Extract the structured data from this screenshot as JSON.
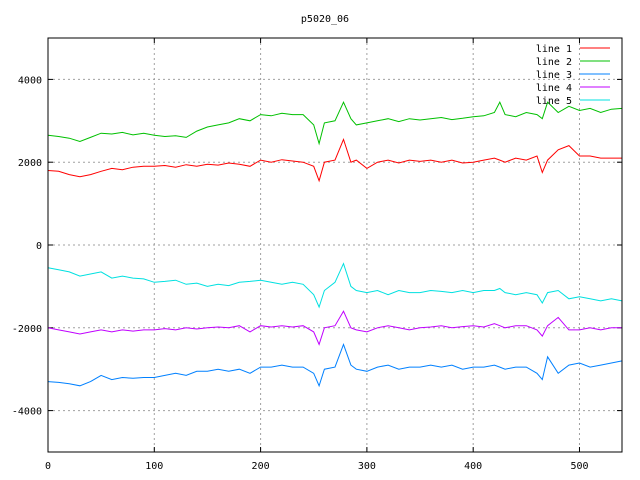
{
  "chart_data": {
    "type": "line",
    "title": "p5020_06",
    "xlabel": "",
    "ylabel": "",
    "xlim": [
      0,
      540
    ],
    "ylim": [
      -5000,
      5000
    ],
    "xticks": [
      0,
      100,
      200,
      300,
      400,
      500
    ],
    "yticks": [
      -4000,
      -2000,
      0,
      2000,
      4000
    ],
    "grid": true,
    "legend_position": "top-right",
    "x": [
      0,
      10,
      20,
      30,
      40,
      50,
      60,
      70,
      80,
      90,
      100,
      110,
      120,
      130,
      140,
      150,
      160,
      170,
      180,
      190,
      200,
      210,
      220,
      230,
      240,
      250,
      255,
      260,
      270,
      278,
      285,
      290,
      300,
      310,
      320,
      330,
      340,
      350,
      360,
      370,
      380,
      390,
      400,
      410,
      420,
      425,
      430,
      440,
      450,
      460,
      465,
      470,
      480,
      490,
      500,
      510,
      520,
      530,
      540
    ],
    "series": [
      {
        "name": "line 1",
        "color": "#ff0000",
        "values": [
          1800,
          1780,
          1700,
          1650,
          1700,
          1780,
          1850,
          1820,
          1880,
          1900,
          1900,
          1920,
          1880,
          1940,
          1900,
          1950,
          1930,
          1980,
          1950,
          1900,
          2050,
          2000,
          2060,
          2030,
          2000,
          1900,
          1550,
          2000,
          2050,
          2550,
          2000,
          2050,
          1850,
          2000,
          2050,
          1980,
          2050,
          2020,
          2050,
          2000,
          2050,
          1980,
          2000,
          2050,
          2100,
          2050,
          2000,
          2100,
          2050,
          2150,
          1750,
          2050,
          2300,
          2400,
          2150,
          2150,
          2100,
          2100,
          2100
        ]
      },
      {
        "name": "line 2",
        "color": "#00c000",
        "values": [
          2650,
          2620,
          2580,
          2500,
          2600,
          2700,
          2680,
          2720,
          2660,
          2700,
          2650,
          2620,
          2640,
          2600,
          2750,
          2850,
          2900,
          2950,
          3050,
          3000,
          3150,
          3120,
          3180,
          3150,
          3150,
          2900,
          2450,
          2950,
          3000,
          3450,
          3050,
          2900,
          2950,
          3000,
          3050,
          2980,
          3050,
          3020,
          3050,
          3080,
          3030,
          3060,
          3100,
          3120,
          3200,
          3450,
          3150,
          3100,
          3200,
          3150,
          3050,
          3450,
          3200,
          3350,
          3250,
          3300,
          3200,
          3280,
          3300
        ]
      },
      {
        "name": "line 3",
        "color": "#0080ff",
        "values": [
          -3300,
          -3320,
          -3350,
          -3400,
          -3300,
          -3150,
          -3250,
          -3200,
          -3220,
          -3200,
          -3200,
          -3150,
          -3100,
          -3150,
          -3050,
          -3050,
          -3000,
          -3050,
          -3000,
          -3100,
          -2950,
          -2950,
          -2900,
          -2950,
          -2950,
          -3100,
          -3400,
          -3000,
          -2950,
          -2400,
          -2900,
          -3000,
          -3050,
          -2950,
          -2900,
          -3000,
          -2950,
          -2950,
          -2900,
          -2950,
          -2900,
          -3000,
          -2950,
          -2950,
          -2900,
          -2950,
          -3000,
          -2950,
          -2950,
          -3100,
          -3250,
          -2700,
          -3100,
          -2900,
          -2850,
          -2950,
          -2900,
          -2850,
          -2800
        ]
      },
      {
        "name": "line 4",
        "color": "#c000ff",
        "values": [
          -2000,
          -2050,
          -2100,
          -2150,
          -2100,
          -2050,
          -2100,
          -2050,
          -2080,
          -2050,
          -2050,
          -2020,
          -2050,
          -2000,
          -2030,
          -2000,
          -1980,
          -2000,
          -1950,
          -2100,
          -1950,
          -1980,
          -1950,
          -1980,
          -1950,
          -2100,
          -2400,
          -2000,
          -1950,
          -1600,
          -2000,
          -2050,
          -2100,
          -2000,
          -1950,
          -2000,
          -2050,
          -2000,
          -1980,
          -1950,
          -2000,
          -1970,
          -1950,
          -1980,
          -1900,
          -1950,
          -2000,
          -1950,
          -1950,
          -2050,
          -2200,
          -1950,
          -1750,
          -2050,
          -2050,
          -2000,
          -2050,
          -2000,
          -2000
        ]
      },
      {
        "name": "line 5",
        "color": "#00e0e0",
        "values": [
          -550,
          -600,
          -650,
          -750,
          -700,
          -650,
          -800,
          -750,
          -800,
          -820,
          -900,
          -880,
          -850,
          -950,
          -920,
          -1000,
          -950,
          -980,
          -900,
          -880,
          -850,
          -900,
          -950,
          -900,
          -950,
          -1200,
          -1500,
          -1100,
          -900,
          -450,
          -1000,
          -1100,
          -1150,
          -1100,
          -1200,
          -1100,
          -1150,
          -1150,
          -1100,
          -1120,
          -1150,
          -1100,
          -1150,
          -1100,
          -1100,
          -1050,
          -1150,
          -1200,
          -1150,
          -1200,
          -1400,
          -1150,
          -1100,
          -1300,
          -1250,
          -1300,
          -1350,
          -1300,
          -1350
        ]
      }
    ]
  }
}
